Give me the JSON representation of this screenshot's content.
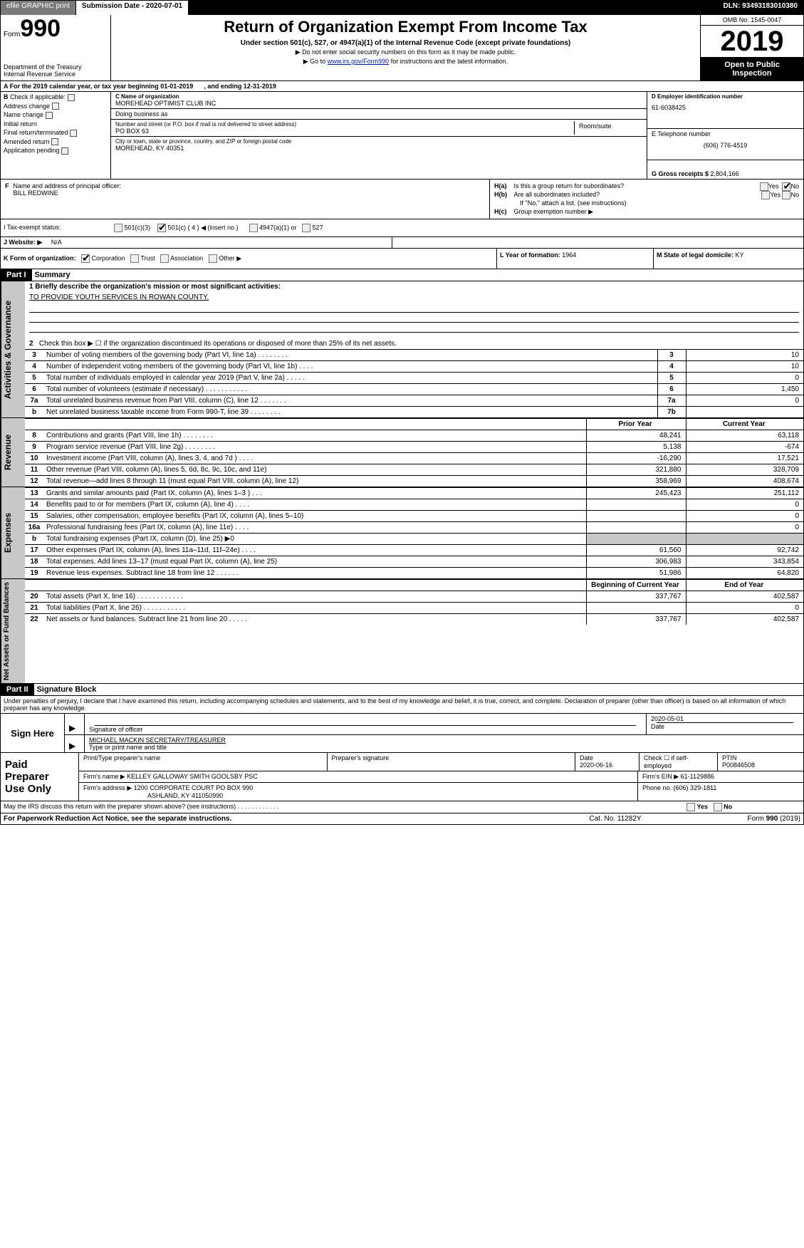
{
  "topbar": {
    "efile_btn": "efile GRAPHIC print",
    "submission_label": "Submission Date - 2020-07-01",
    "dln": "DLN: 93493183010380"
  },
  "header": {
    "form_word": "Form",
    "form_num": "990",
    "dept1": "Department of the Treasury",
    "dept2": "Internal Revenue Service",
    "title": "Return of Organization Exempt From Income Tax",
    "sub1": "Under section 501(c), 527, or 4947(a)(1) of the Internal Revenue Code (except private foundations)",
    "sub2": "▶ Do not enter social security numbers on this form as it may be made public.",
    "sub3a": "▶ Go to ",
    "sub3link": "www.irs.gov/Form990",
    "sub3b": " for instructions and the latest information.",
    "omb": "OMB No. 1545-0047",
    "year": "2019",
    "open1": "Open to Public",
    "open2": "Inspection"
  },
  "rowA": {
    "text_a": "A   For the 2019 calendar year, or tax year beginning 01-01-2019",
    "text_b": ", and ending 12-31-2019"
  },
  "colB": {
    "hdr": "B",
    "chk_label": "Check if applicable:",
    "items": [
      "Address change",
      "Name change",
      "Initial return",
      "Final return/terminated",
      "Amended return",
      "Application pending"
    ]
  },
  "colC": {
    "name_lbl": "C Name of organization",
    "name": "MOREHEAD OPTIMIST CLUB INC",
    "dba_lbl": "Doing business as",
    "dba": "",
    "addr_lbl": "Number and street (or P.O. box if mail is not delivered to street address)",
    "addr": "PO BOX 63",
    "room_lbl": "Room/suite",
    "city_lbl": "City or town, state or province, country, and ZIP or foreign postal code",
    "city": "MOREHEAD, KY   40351"
  },
  "colD": {
    "ein_lbl": "D Employer identification number",
    "ein": "61-6038425",
    "tel_lbl": "E Telephone number",
    "tel": "(606) 776-4519",
    "gross_lbl": "G Gross receipts $ ",
    "gross": "2,804,166"
  },
  "secF": {
    "lblF": "F",
    "lbl": "Name and address of principal officer:",
    "name": "BILL REDWINE"
  },
  "secH": {
    "ha_lbl": "H(a)",
    "ha_txt": "Is this a group return for subordinates?",
    "hb_lbl": "H(b)",
    "hb_txt": "Are all subordinates included?",
    "hb_note": "If \"No,\" attach a list. (see instructions)",
    "hc_lbl": "H(c)",
    "hc_txt": "Group exemption number ▶",
    "yes": "Yes",
    "no": "No"
  },
  "rowI": {
    "lbl": "I     Tax-exempt status:",
    "o1": "501(c)(3)",
    "o2a": "501(c) ( 4 ) ◀ (insert no.)",
    "o3": "4947(a)(1) or",
    "o4": "527"
  },
  "rowJ": {
    "lbl": "J    Website: ▶",
    "val": "N/A"
  },
  "rowK": {
    "lbl": "K Form of organization:",
    "opts": [
      "Corporation",
      "Trust",
      "Association",
      "Other ▶"
    ]
  },
  "rowL": {
    "lbl": "L Year of formation: ",
    "val": "1964"
  },
  "rowM": {
    "lbl": "M State of legal domicile: ",
    "val": "KY"
  },
  "part1": {
    "hdr": "Part I",
    "title": "Summary",
    "side_activities": "Activities & Governance",
    "side_revenue": "Revenue",
    "side_expenses": "Expenses",
    "side_netassets": "Net Assets or Fund Balances",
    "q1a": "1  Briefly describe the organization's mission or most significant activities:",
    "q1b": "TO PROVIDE YOUTH SERVICES IN ROWAN COUNTY.",
    "q2": "Check this box ▶ ☐  if the organization discontinued its operations or disposed of more than 25% of its net assets.",
    "lines_ag": [
      {
        "n": "3",
        "t": "Number of voting members of the governing body (Part VI, line 1a)   .     .     .     .     .     .     .     .",
        "b": "3",
        "v": "10"
      },
      {
        "n": "4",
        "t": "Number of independent voting members of the governing body (Part VI, line 1b)    .     .     .     .",
        "b": "4",
        "v": "10"
      },
      {
        "n": "5",
        "t": "Total number of individuals employed in calendar year 2019 (Part V, line 2a)    .     .     .     .     .",
        "b": "5",
        "v": "0"
      },
      {
        "n": "6",
        "t": "Total number of volunteers (estimate if necessary)    .     .     .     .     .     .     .     .     .     .     .",
        "b": "6",
        "v": "1,450"
      },
      {
        "n": "7a",
        "t": "Total unrelated business revenue from Part VIII, column (C), line 12    .     .     .     .     .     .     .",
        "b": "7a",
        "v": "0"
      },
      {
        "n": "b",
        "t": "Net unrelated business taxable income from Form 990-T, line 39    .     .     .     .     .     .     .     .",
        "b": "7b",
        "v": ""
      }
    ],
    "col_prior": "Prior Year",
    "col_current": "Current Year",
    "revenue": [
      {
        "n": "8",
        "t": "Contributions and grants (Part VIII, line 1h)    .     .     .     .     .     .     .     .",
        "p": "48,241",
        "c": "63,118"
      },
      {
        "n": "9",
        "t": "Program service revenue (Part VIII, line 2g)     .     .     .     .     .     .     .     .",
        "p": "5,138",
        "c": "-674"
      },
      {
        "n": "10",
        "t": "Investment income (Part VIII, column (A), lines 3, 4, and 7d )    .     .     .     .",
        "p": "-16,290",
        "c": "17,521"
      },
      {
        "n": "11",
        "t": "Other revenue (Part VIII, column (A), lines 5, 6d, 8c, 9c, 10c, and 11e)",
        "p": "321,880",
        "c": "328,709"
      },
      {
        "n": "12",
        "t": "Total revenue—add lines 8 through 11 (must equal Part VIII, column (A), line 12)",
        "p": "358,969",
        "c": "408,674"
      }
    ],
    "expenses": [
      {
        "n": "13",
        "t": "Grants and similar amounts paid (Part IX, column (A), lines 1–3 )   .     .     .",
        "p": "245,423",
        "c": "251,112"
      },
      {
        "n": "14",
        "t": "Benefits paid to or for members (Part IX, column (A), line 4)   .     .     .     .",
        "p": "",
        "c": "0"
      },
      {
        "n": "15",
        "t": "Salaries, other compensation, employee benefits (Part IX, column (A), lines 5–10)",
        "p": "",
        "c": "0"
      },
      {
        "n": "16a",
        "t": "Professional fundraising fees (Part IX, column (A), line 11e)   .     .     .     .",
        "p": "",
        "c": "0"
      },
      {
        "n": "b",
        "t": "Total fundraising expenses (Part IX, column (D), line 25) ▶0",
        "p": "__shade__",
        "c": "__shade__"
      },
      {
        "n": "17",
        "t": "Other expenses (Part IX, column (A), lines 11a–11d, 11f–24e)   .     .     .     .",
        "p": "61,560",
        "c": "92,742"
      },
      {
        "n": "18",
        "t": "Total expenses. Add lines 13–17 (must equal Part IX, column (A), line 25)",
        "p": "306,983",
        "c": "343,854"
      },
      {
        "n": "19",
        "t": "Revenue less expenses. Subtract line 18 from line 12  .     .     .     .     .     .",
        "p": "51,986",
        "c": "64,820"
      }
    ],
    "col_boy": "Beginning of Current Year",
    "col_eoy": "End of Year",
    "netassets": [
      {
        "n": "20",
        "t": "Total assets (Part X, line 16)  .      .      .      .      .      .      .      .      .      .      .      .",
        "p": "337,767",
        "c": "402,587"
      },
      {
        "n": "21",
        "t": "Total liabilities (Part X, line 26)   .      .      .      .      .      .      .      .      .      .      .",
        "p": "",
        "c": "0"
      },
      {
        "n": "22",
        "t": "Net assets or fund balances. Subtract line 21 from line 20   .      .      .      .      .",
        "p": "337,767",
        "c": "402,587"
      }
    ]
  },
  "part2": {
    "hdr": "Part II",
    "title": "Signature Block",
    "perjury": "Under penalties of perjury, I declare that I have examined this return, including accompanying schedules and statements, and to the best of my knowledge and belief, it is true, correct, and complete. Declaration of preparer (other than officer) is based on all information of which preparer has any knowledge.",
    "sign_here": "Sign Here",
    "sig_officer_lbl": "Signature of officer",
    "sig_date": "2020-05-01",
    "date_lbl": "Date",
    "officer_name": "MICHAEL MACKIN  SECRETARY/TREASURER",
    "type_name_lbl": "Type or print name and title"
  },
  "paid": {
    "hdr": "Paid Preparer Use Only",
    "c1": "Print/Type preparer's name",
    "c2": "Preparer's signature",
    "c3": "Date",
    "c3v": "2020-06-16",
    "c4a": "Check ☐ if self-employed",
    "c5": "PTIN",
    "c5v": "P00846508",
    "firm_name_lbl": "Firm's name      ▶",
    "firm_name": "KELLEY GALLOWAY SMITH GOOLSBY PSC",
    "firm_ein_lbl": "Firm's EIN ▶",
    "firm_ein": "61-1129886",
    "firm_addr_lbl": "Firm's address ▶",
    "firm_addr1": "1200 CORPORATE COURT PO BOX 990",
    "firm_addr2": "ASHLAND, KY   411050990",
    "phone_lbl": "Phone no. ",
    "phone": "(606) 329-1811"
  },
  "footer": {
    "discuss": "May the IRS discuss this return with the preparer shown above? (see instructions)   .     .     .     .     .     .     .     .     .     .     .     .",
    "yes": "Yes",
    "no": "No",
    "pra": "For Paperwork Reduction Act Notice, see the separate instructions.",
    "cat": "Cat. No. 11282Y",
    "form": "Form 990 (2019)"
  }
}
